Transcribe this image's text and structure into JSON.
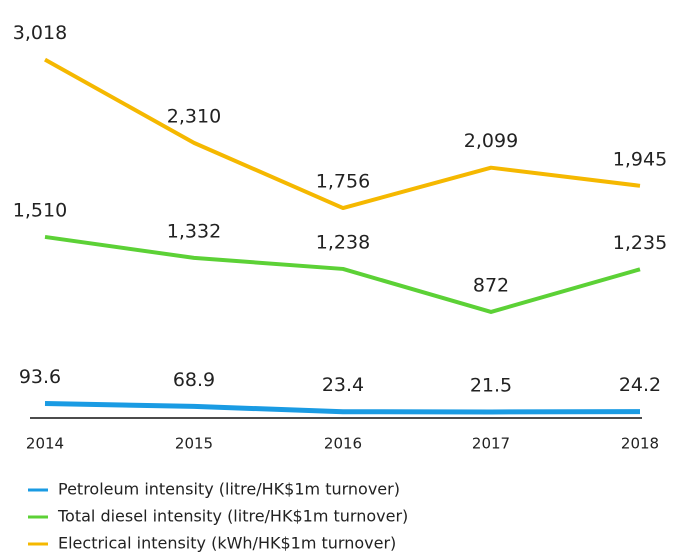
{
  "chart_data": {
    "type": "line",
    "categories": [
      "2014",
      "2015",
      "2016",
      "2017",
      "2018"
    ],
    "ylim": [
      0,
      3100
    ],
    "series": [
      {
        "name": "Petroleum intensity (litre/HK$1m turnover)",
        "color": "#1a9be3",
        "values": [
          93.6,
          68.9,
          23.4,
          21.5,
          24.2
        ]
      },
      {
        "name": "Total diesel intensity (litre/HK$1m turnover)",
        "color": "#5cd136",
        "values": [
          1510,
          1332,
          1238,
          872,
          1235
        ],
        "value_labels": [
          "1,510",
          "1,332",
          "1,238",
          "872",
          "1,235"
        ]
      },
      {
        "name": "Electrical intensity (kWh/HK$1m turnover)",
        "color": "#f5b800",
        "values": [
          3018,
          2310,
          1756,
          2099,
          1945
        ],
        "value_labels": [
          "3,018",
          "2,310",
          "1,756",
          "2,099",
          "1,945"
        ]
      }
    ]
  }
}
